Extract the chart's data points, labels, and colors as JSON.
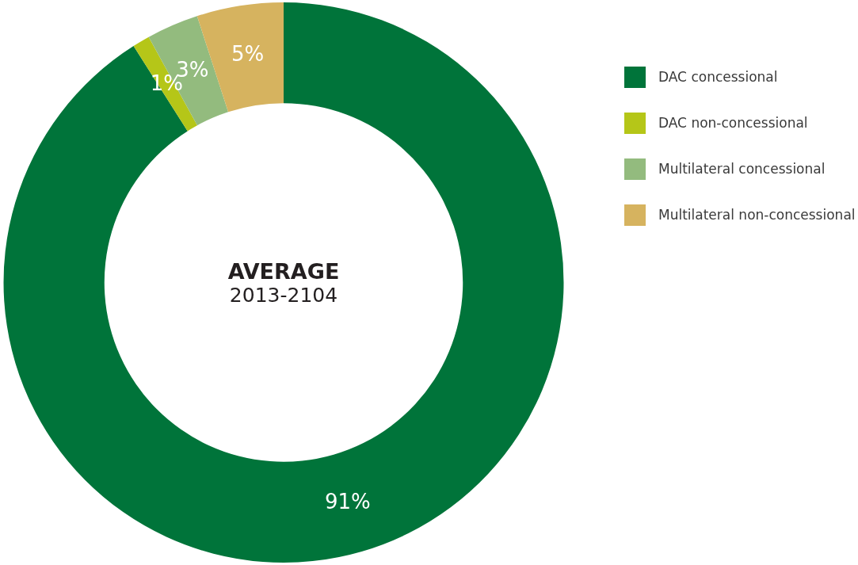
{
  "chart_data": {
    "type": "donut",
    "title": "AVERAGE",
    "subtitle": "2013-2104",
    "categories": [
      "DAC concessional",
      "DAC non-concessional",
      "Multilateral concessional",
      "Multilateral non-concessional"
    ],
    "values": [
      91,
      1,
      3,
      5
    ],
    "colors": [
      "#00743a",
      "#b5c618",
      "#93bb7e",
      "#d6b35f"
    ],
    "value_labels": [
      "91%",
      "1%",
      "3%",
      "5%"
    ],
    "legend": "right"
  }
}
